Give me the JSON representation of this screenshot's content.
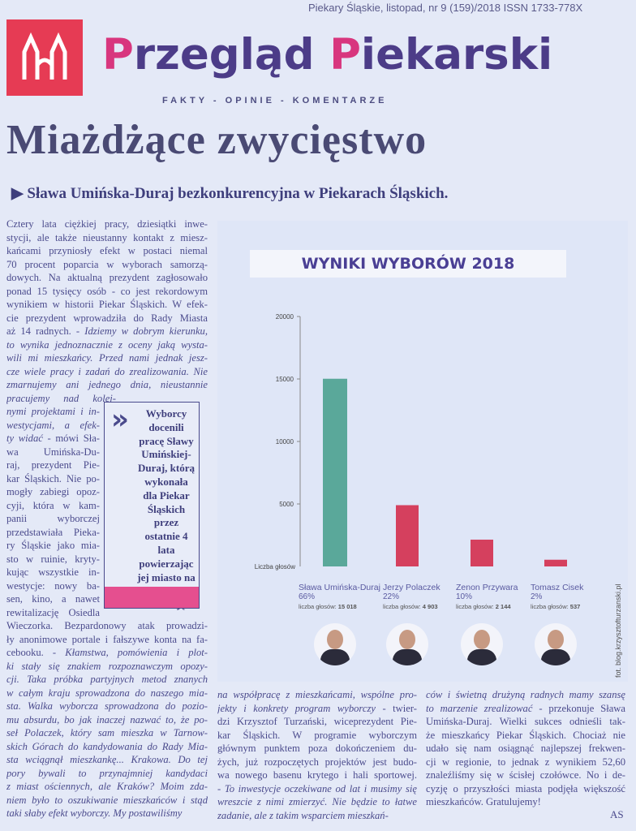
{
  "header": {
    "issue_line": "Piekary Śląskie, listopad, nr 9 (159)/2018 ISSN 1733-778X",
    "title_p1": "P",
    "title_r1": "rzegląd ",
    "title_p2": "P",
    "title_r2": "iekarski",
    "tagline": "FAKTY - OPINIE - KOMENTARZE",
    "logo_color": "#e63b54"
  },
  "article": {
    "headline": "Miażdżące zwycięstwo",
    "subhead": "Sława Umińska-Duraj bezkonkurencyjna w Piekarach Śląskich.",
    "left_column": [
      [
        [
          "Cztery lata ciężkiej pracy, dziesiątki inwe-",
          0
        ]
      ],
      [
        [
          "stycji, ale także nieustanny kontakt z miesz-",
          0
        ]
      ],
      [
        [
          "kańcami przyniosły efekt w postaci niemal",
          0
        ]
      ],
      [
        [
          "70 procent poparcia w wyborach samorzą-",
          0
        ]
      ],
      [
        [
          "dowych. Na aktualną prezydent zagłosowało",
          0
        ]
      ],
      [
        [
          "ponad 15 tysięcy osób - co jest rekordowym",
          0
        ]
      ],
      [
        [
          "wynikiem w historii Piekar Śląskich. W efek-",
          0
        ]
      ],
      [
        [
          "cie prezydent wprowadziła do Rady Miasta",
          0
        ]
      ],
      [
        [
          "aż 14 radnych. - ",
          0
        ],
        [
          "Idziemy w dobrym kierunku,",
          1
        ]
      ],
      [
        [
          "to wynika jednoznacznie z oceny jaką wysta-",
          1
        ]
      ],
      [
        [
          "wili mi mieszkańcy. Przed nami jednak jesz-",
          1
        ]
      ],
      [
        [
          "cze wiele pracy i zadań do zrealizowania. Nie",
          1
        ]
      ],
      [
        [
          "zmarnujemy ani jednego dnia, nieustannie",
          1
        ]
      ],
      [
        [
          "pracujemy nad kolej-",
          1
        ]
      ],
      [
        [
          "nymi projektami i in-",
          1
        ]
      ],
      [
        [
          "westycjami, a efek-",
          1
        ]
      ],
      [
        [
          "ty widać",
          1
        ],
        [
          " - mówi Sła-",
          0
        ]
      ],
      [
        [
          "wa Umińska-Du-",
          0
        ]
      ],
      [
        [
          "raj, prezydent Pie-",
          0
        ]
      ],
      [
        [
          "kar Śląskich. Nie po-",
          0
        ]
      ],
      [
        [
          "mogły zabiegi opoz-",
          0
        ]
      ],
      [
        [
          "cyji, która w kam-",
          0
        ]
      ],
      [
        [
          "panii wyborczej",
          0
        ]
      ],
      [
        [
          "przedstawiała Pieka-",
          0
        ]
      ],
      [
        [
          "ry Śląskie jako mia-",
          0
        ]
      ],
      [
        [
          "sto w ruinie, kryty-",
          0
        ]
      ],
      [
        [
          "kując wszystkie in-",
          0
        ]
      ],
      [
        [
          "westycje: nowy ba-",
          0
        ]
      ],
      [
        [
          "sen, kino, a nawet",
          0
        ]
      ],
      [
        [
          "rewitalizację Osiedla",
          0
        ]
      ],
      [
        [
          "Wieczorka. Bezpardonowy atak prowadzi-",
          0
        ]
      ],
      [
        [
          "ły anonimowe portale i fałszywe konta na fa-",
          0
        ]
      ],
      [
        [
          "cebooku. - ",
          0
        ],
        [
          "Kłamstwa, pomówienia i plot-",
          1
        ]
      ],
      [
        [
          "ki stały się znakiem rozpoznawczym opozy-",
          1
        ]
      ],
      [
        [
          "cji. Taka próbka partyjnych metod znanych",
          1
        ]
      ],
      [
        [
          "w całym kraju sprowadzona do naszego mia-",
          1
        ]
      ],
      [
        [
          "sta. Walka wyborcza sprowadzona do pozio-",
          1
        ]
      ],
      [
        [
          "mu absurdu, bo jak inaczej nazwać to, że po-",
          1
        ]
      ],
      [
        [
          "seł Polaczek, który sam mieszka w Tarnow-",
          1
        ]
      ],
      [
        [
          "skich Górach do kandydowania do Rady Mia-",
          1
        ]
      ],
      [
        [
          "sta wciągnął mieszkankę... Krakowa. Do tej",
          1
        ]
      ],
      [
        [
          "pory bywali to przynajmniej kandydaci",
          1
        ]
      ],
      [
        [
          "z miast ościennych, ale Kraków? Moim zda-",
          1
        ]
      ],
      [
        [
          "niem było to oszukiwanie mieszkańców i stąd",
          1
        ]
      ],
      [
        [
          "taki słaby efekt wyborczy. My postawiliśmy",
          1
        ]
      ]
    ],
    "middle_column": [
      [
        [
          "na współpracę z mieszkańcami, wspólne pro-",
          1
        ]
      ],
      [
        [
          "jekty i konkrety program wyborczy",
          1
        ],
        [
          " - twier-",
          0
        ]
      ],
      [
        [
          "dzi Krzysztof Turzański, wiceprezydent Pie-",
          0
        ]
      ],
      [
        [
          "kar Śląskich. W programie wyborczym",
          0
        ]
      ],
      [
        [
          "głównym punktem poza dokończeniem du-",
          0
        ]
      ],
      [
        [
          "żych, już rozpoczętych projektów jest budo-",
          0
        ]
      ],
      [
        [
          "wa nowego basenu krytego i hali sportowej.",
          0
        ]
      ],
      [
        [
          "- To inwestycje oczekiwane od lat i musimy się",
          1
        ]
      ],
      [
        [
          "wreszcie z nimi zmierzyć. Nie będzie to łatwe",
          1
        ]
      ],
      [
        [
          "zadanie, ale z takim wsparciem mieszkań-",
          1
        ]
      ]
    ],
    "right_column": [
      [
        [
          "ców i świetną drużyną radnych mamy szansę",
          1
        ]
      ],
      [
        [
          "to marzenie zrealizować",
          1
        ],
        [
          " - przekonuje Sława",
          0
        ]
      ],
      [
        [
          "Umińska-Duraj. Wielki sukces odnieśli tak-",
          0
        ]
      ],
      [
        [
          "że mieszkańcy Piekar Śląskich. Chociaż nie",
          0
        ]
      ],
      [
        [
          "udało się nam osiągnąć najlepszej frekwen-",
          0
        ]
      ],
      [
        [
          "cji w regionie, to jednak z wynikiem 52,60",
          0
        ]
      ],
      [
        [
          "znaleźliśmy się w ścisłej czołówce. No i de-",
          0
        ]
      ],
      [
        [
          "cyzję o przyszłości miasta podjęła większość",
          0
        ]
      ],
      [
        [
          "mieszkańców. Gratulujemy!",
          0
        ]
      ]
    ],
    "pull_quote": "Wyborcy docenili pracę Sławy Umińskiej-Duraj, którą wykonała dla Piekar Śląskich przez ostatnie 4 lata powierzając jej miasto na kolejną kadencję.",
    "author": "AS",
    "photo_credit": "fot. blog.krzysztofturzanski.pl"
  },
  "chart_data": {
    "type": "bar",
    "title": "WYNIKI WYBORÓW 2018",
    "ylabel": "Liczba głosów",
    "ylim": [
      0,
      20000
    ],
    "yticks": [
      5000,
      10000,
      15000,
      20000
    ],
    "categories": [
      "Sława Umińska-Duraj",
      "Jerzy Polaczek",
      "Zenon Przywara",
      "Tomasz Cisek"
    ],
    "percent_labels": [
      "66%",
      "22%",
      "10%",
      "2%"
    ],
    "vote_prefix": "liczba głosów:",
    "vote_labels": [
      "15 018",
      "4 903",
      "2 144",
      "537"
    ],
    "values": [
      15018,
      4903,
      2144,
      537
    ],
    "colors": [
      "#5aa89a",
      "#d5405e",
      "#d5405e",
      "#d5405e"
    ]
  }
}
